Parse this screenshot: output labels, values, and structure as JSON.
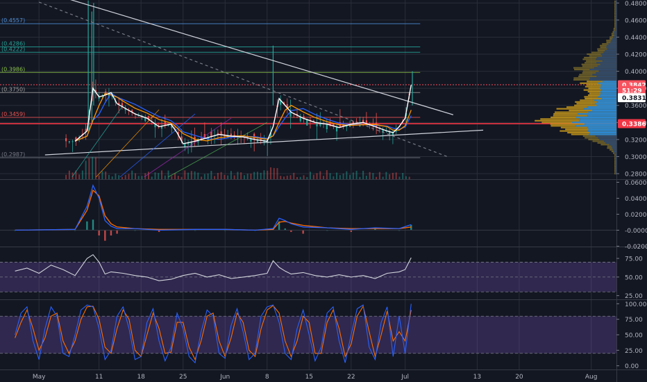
{
  "chart_data": {
    "type": "line",
    "main": {
      "y_ticks": [
        "0.4800",
        "0.4600",
        "0.4400",
        "0.4200",
        "0.4000",
        "0.3800",
        "0.3600",
        "0.3400",
        "0.3200",
        "0.3000",
        "0.2800"
      ],
      "ylim": [
        0.2735,
        0.4835
      ],
      "fib_levels": [
        {
          "label": "(0.4557)",
          "value": 0.4557,
          "color": "#4f8fd8"
        },
        {
          "label": "(0.4286)",
          "value": 0.4286,
          "color": "#26a69a"
        },
        {
          "label": "(0.4222)",
          "value": 0.4222,
          "color": "#26a69a"
        },
        {
          "label": "(0.3986)",
          "value": 0.3986,
          "color": "#8bc34a"
        },
        {
          "label": "(0.3750)",
          "value": 0.375,
          "color": "#9e9e9e"
        },
        {
          "label": "(0.3459)",
          "value": 0.3459,
          "color": "#ef5350"
        },
        {
          "label": "(0.2987)",
          "value": 0.2987,
          "color": "#787b86"
        }
      ],
      "price_badges": [
        {
          "label": "0.3842",
          "value": 0.3842,
          "bg": "#f7525f",
          "fg": "#ffffff"
        },
        {
          "label": "51:29",
          "value": 0.3775,
          "bg": "#f7525f",
          "fg": "#ffffff"
        },
        {
          "label": "0.3831",
          "value": 0.369,
          "bg": "#ffffff",
          "fg": "#131722"
        },
        {
          "label": "0.3386",
          "value": 0.3386,
          "bg": "#f23645",
          "fg": "#ffffff"
        }
      ],
      "close_series": [
        [
          0,
          0.318
        ],
        [
          2,
          0.33
        ],
        [
          3,
          0.38
        ],
        [
          4,
          0.37
        ],
        [
          5,
          0.372
        ],
        [
          6,
          0.375
        ],
        [
          7,
          0.362
        ],
        [
          8,
          0.358
        ],
        [
          10,
          0.35
        ],
        [
          12,
          0.345
        ],
        [
          14,
          0.335
        ],
        [
          16,
          0.338
        ],
        [
          17,
          0.328
        ],
        [
          18,
          0.315
        ],
        [
          20,
          0.318
        ],
        [
          22,
          0.322
        ],
        [
          24,
          0.326
        ],
        [
          26,
          0.324
        ],
        [
          28,
          0.323
        ],
        [
          30,
          0.32
        ],
        [
          32,
          0.318
        ],
        [
          33,
          0.335
        ],
        [
          34,
          0.368
        ],
        [
          35,
          0.36
        ],
        [
          36,
          0.352
        ],
        [
          38,
          0.345
        ],
        [
          40,
          0.34
        ],
        [
          42,
          0.338
        ],
        [
          44,
          0.334
        ],
        [
          46,
          0.338
        ],
        [
          48,
          0.34
        ],
        [
          50,
          0.335
        ],
        [
          52,
          0.33
        ],
        [
          53,
          0.328
        ],
        [
          54,
          0.335
        ],
        [
          55,
          0.345
        ],
        [
          56,
          0.384
        ]
      ],
      "trendlines": [
        {
          "from": [
            -6,
            0.495
          ],
          "to": [
            63,
            0.349
          ],
          "style": "solid",
          "color": "#d1d4dc"
        },
        {
          "from": [
            -5,
            0.302
          ],
          "to": [
            68,
            0.331
          ],
          "style": "solid",
          "color": "#d1d4dc"
        },
        {
          "from": [
            -6,
            0.481
          ],
          "to": [
            62,
            0.3
          ],
          "style": "dashed",
          "color": "#787b86"
        }
      ]
    },
    "macd": {
      "y_ticks": [
        "0.0600",
        "0.0400",
        "0.0200",
        "-0.0000",
        "-0.0200"
      ],
      "ylim": [
        -0.0205,
        0.063
      ],
      "macd_line": [
        [
          -10,
          0
        ],
        [
          0,
          0.001
        ],
        [
          2,
          0.03
        ],
        [
          3,
          0.056
        ],
        [
          4,
          0.04
        ],
        [
          5,
          0.012
        ],
        [
          6,
          0.005
        ],
        [
          7,
          0.002
        ],
        [
          10,
          0.002
        ],
        [
          14,
          0
        ],
        [
          20,
          0.001
        ],
        [
          25,
          0.001
        ],
        [
          30,
          0
        ],
        [
          33,
          0.002
        ],
        [
          34,
          0.015
        ],
        [
          35,
          0.012
        ],
        [
          36,
          0.008
        ],
        [
          38,
          0.004
        ],
        [
          42,
          0.003
        ],
        [
          46,
          0.001
        ],
        [
          50,
          0.003
        ],
        [
          54,
          0.002
        ],
        [
          56,
          0.007
        ]
      ],
      "signal_line": [
        [
          -10,
          0
        ],
        [
          0,
          0.001
        ],
        [
          2,
          0.025
        ],
        [
          3,
          0.05
        ],
        [
          4,
          0.043
        ],
        [
          5,
          0.018
        ],
        [
          6,
          0.008
        ],
        [
          7,
          0.004
        ],
        [
          10,
          0.002
        ],
        [
          14,
          0.001
        ],
        [
          20,
          0.001
        ],
        [
          25,
          0.001
        ],
        [
          30,
          0
        ],
        [
          33,
          0.001
        ],
        [
          34,
          0.01
        ],
        [
          35,
          0.011
        ],
        [
          36,
          0.009
        ],
        [
          38,
          0.006
        ],
        [
          42,
          0.003
        ],
        [
          46,
          0.002
        ],
        [
          50,
          0.002
        ],
        [
          54,
          0.002
        ],
        [
          56,
          0.004
        ]
      ]
    },
    "rsi": {
      "y_ticks": [
        "75.00",
        "50.00",
        "25.00"
      ],
      "ylim": [
        20,
        90
      ],
      "band": [
        30,
        70
      ],
      "values": [
        [
          -10,
          58
        ],
        [
          -8,
          62
        ],
        [
          -6,
          55
        ],
        [
          -4,
          66
        ],
        [
          -2,
          60
        ],
        [
          0,
          52
        ],
        [
          2,
          75
        ],
        [
          3,
          80
        ],
        [
          4,
          70
        ],
        [
          5,
          54
        ],
        [
          6,
          57
        ],
        [
          8,
          55
        ],
        [
          10,
          52
        ],
        [
          12,
          50
        ],
        [
          14,
          45
        ],
        [
          16,
          47
        ],
        [
          18,
          52
        ],
        [
          20,
          55
        ],
        [
          22,
          50
        ],
        [
          24,
          53
        ],
        [
          26,
          48
        ],
        [
          28,
          50
        ],
        [
          30,
          52
        ],
        [
          32,
          55
        ],
        [
          33,
          72
        ],
        [
          34,
          63
        ],
        [
          35,
          58
        ],
        [
          36,
          54
        ],
        [
          38,
          56
        ],
        [
          40,
          52
        ],
        [
          42,
          50
        ],
        [
          44,
          53
        ],
        [
          46,
          50
        ],
        [
          48,
          52
        ],
        [
          50,
          48
        ],
        [
          52,
          55
        ],
        [
          54,
          57
        ],
        [
          55,
          60
        ],
        [
          56,
          76
        ]
      ]
    },
    "stoch": {
      "y_ticks": [
        "100.00",
        "75.00",
        "50.00",
        "25.00",
        "0.00"
      ],
      "ylim": [
        -6,
        106
      ],
      "band": [
        20,
        80
      ],
      "k": [
        [
          -10,
          50
        ],
        [
          -9,
          85
        ],
        [
          -8,
          95
        ],
        [
          -7,
          40
        ],
        [
          -6,
          10
        ],
        [
          -5,
          60
        ],
        [
          -4,
          95
        ],
        [
          -3,
          80
        ],
        [
          -2,
          20
        ],
        [
          -1,
          15
        ],
        [
          0,
          50
        ],
        [
          1,
          90
        ],
        [
          2,
          98
        ],
        [
          3,
          95
        ],
        [
          4,
          60
        ],
        [
          5,
          10
        ],
        [
          6,
          25
        ],
        [
          7,
          80
        ],
        [
          8,
          95
        ],
        [
          9,
          60
        ],
        [
          10,
          10
        ],
        [
          11,
          15
        ],
        [
          12,
          70
        ],
        [
          13,
          92
        ],
        [
          14,
          40
        ],
        [
          15,
          8
        ],
        [
          16,
          30
        ],
        [
          17,
          85
        ],
        [
          18,
          60
        ],
        [
          19,
          15
        ],
        [
          20,
          5
        ],
        [
          21,
          55
        ],
        [
          22,
          90
        ],
        [
          23,
          80
        ],
        [
          24,
          20
        ],
        [
          25,
          12
        ],
        [
          26,
          65
        ],
        [
          27,
          92
        ],
        [
          28,
          55
        ],
        [
          29,
          10
        ],
        [
          30,
          20
        ],
        [
          31,
          80
        ],
        [
          32,
          95
        ],
        [
          33,
          98
        ],
        [
          34,
          70
        ],
        [
          35,
          20
        ],
        [
          36,
          10
        ],
        [
          37,
          60
        ],
        [
          38,
          90
        ],
        [
          39,
          50
        ],
        [
          40,
          8
        ],
        [
          41,
          30
        ],
        [
          42,
          85
        ],
        [
          43,
          95
        ],
        [
          44,
          40
        ],
        [
          45,
          5
        ],
        [
          46,
          50
        ],
        [
          47,
          92
        ],
        [
          48,
          98
        ],
        [
          49,
          30
        ],
        [
          50,
          10
        ],
        [
          51,
          70
        ],
        [
          52,
          95
        ],
        [
          53,
          15
        ],
        [
          54,
          80
        ],
        [
          55,
          20
        ],
        [
          56,
          100
        ]
      ],
      "d": [
        [
          -10,
          45
        ],
        [
          -9,
          70
        ],
        [
          -8,
          90
        ],
        [
          -7,
          60
        ],
        [
          -6,
          25
        ],
        [
          -5,
          45
        ],
        [
          -4,
          80
        ],
        [
          -3,
          85
        ],
        [
          -2,
          40
        ],
        [
          -1,
          20
        ],
        [
          0,
          40
        ],
        [
          1,
          75
        ],
        [
          2,
          95
        ],
        [
          3,
          96
        ],
        [
          4,
          75
        ],
        [
          5,
          30
        ],
        [
          6,
          20
        ],
        [
          7,
          60
        ],
        [
          8,
          90
        ],
        [
          9,
          75
        ],
        [
          10,
          25
        ],
        [
          11,
          15
        ],
        [
          12,
          50
        ],
        [
          13,
          85
        ],
        [
          14,
          60
        ],
        [
          15,
          20
        ],
        [
          16,
          22
        ],
        [
          17,
          70
        ],
        [
          18,
          70
        ],
        [
          19,
          30
        ],
        [
          20,
          10
        ],
        [
          21,
          40
        ],
        [
          22,
          80
        ],
        [
          23,
          85
        ],
        [
          24,
          40
        ],
        [
          25,
          15
        ],
        [
          26,
          45
        ],
        [
          27,
          85
        ],
        [
          28,
          70
        ],
        [
          29,
          25
        ],
        [
          30,
          15
        ],
        [
          31,
          60
        ],
        [
          32,
          90
        ],
        [
          33,
          97
        ],
        [
          34,
          85
        ],
        [
          35,
          40
        ],
        [
          36,
          15
        ],
        [
          37,
          40
        ],
        [
          38,
          80
        ],
        [
          39,
          70
        ],
        [
          40,
          20
        ],
        [
          41,
          20
        ],
        [
          42,
          70
        ],
        [
          43,
          90
        ],
        [
          44,
          60
        ],
        [
          45,
          15
        ],
        [
          46,
          35
        ],
        [
          47,
          80
        ],
        [
          48,
          96
        ],
        [
          49,
          55
        ],
        [
          50,
          15
        ],
        [
          51,
          50
        ],
        [
          52,
          88
        ],
        [
          53,
          40
        ],
        [
          54,
          55
        ],
        [
          55,
          40
        ],
        [
          56,
          90
        ]
      ]
    },
    "x_ticks": [
      {
        "label": "May",
        "day": -6
      },
      {
        "label": "11",
        "day": 4
      },
      {
        "label": "18",
        "day": 11
      },
      {
        "label": "25",
        "day": 18
      },
      {
        "label": "Jun",
        "day": 25
      },
      {
        "label": "8",
        "day": 32
      },
      {
        "label": "15",
        "day": 39
      },
      {
        "label": "22",
        "day": 46
      },
      {
        "label": "Jul",
        "day": 55
      },
      {
        "label": "13",
        "day": 67
      },
      {
        "label": "20",
        "day": 74
      },
      {
        "label": "Aug",
        "day": 86
      }
    ],
    "x_axis_days": [
      -12.5,
      90.2
    ],
    "colors": {
      "background": "#131722",
      "grid": "#2a2e39",
      "axis_text": "#b2b5be",
      "close_line": "#ffffff",
      "ma_fast": "#ff9800",
      "ma_slow": "#2962ff",
      "macd_line": "#2962ff",
      "signal_line": "#ff6d00",
      "rsi_line": "#d1d4dc",
      "rsi_band": "#7e57c2",
      "stoch_k": "#2962ff",
      "stoch_d": "#ff6d00",
      "volume_profile_up": "#c99a1b",
      "volume_profile_va": "#1e88e5"
    }
  }
}
